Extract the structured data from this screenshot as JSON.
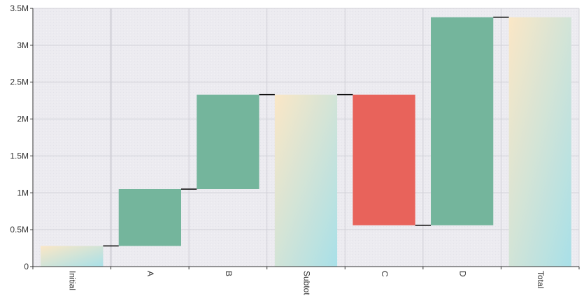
{
  "chart_data": {
    "type": "waterfall",
    "title": "",
    "xlabel": "",
    "ylabel": "",
    "categories": [
      "Initial",
      "A",
      "B",
      "Subtot",
      "C",
      "D",
      "Total"
    ],
    "bars": [
      {
        "label": "Initial",
        "kind": "total",
        "start": 0,
        "end": 280000
      },
      {
        "label": "A",
        "kind": "increase",
        "start": 280000,
        "end": 1050000
      },
      {
        "label": "B",
        "kind": "increase",
        "start": 1050000,
        "end": 2330000
      },
      {
        "label": "Subtot",
        "kind": "total",
        "start": 0,
        "end": 2330000
      },
      {
        "label": "C",
        "kind": "decrease",
        "start": 2330000,
        "end": 560000
      },
      {
        "label": "D",
        "kind": "increase",
        "start": 560000,
        "end": 3380000
      },
      {
        "label": "Total",
        "kind": "total",
        "start": 0,
        "end": 3380000
      }
    ],
    "ylim": [
      0,
      3500000
    ],
    "y_ticks": [
      {
        "value": 0,
        "label": "0"
      },
      {
        "value": 500000,
        "label": "0.5M"
      },
      {
        "value": 1000000,
        "label": "1M"
      },
      {
        "value": 1500000,
        "label": "1.5M"
      },
      {
        "value": 2000000,
        "label": "2M"
      },
      {
        "value": 2500000,
        "label": "2.5M"
      },
      {
        "value": 3000000,
        "label": "3M"
      },
      {
        "value": 3500000,
        "label": "3.5M"
      }
    ],
    "grid": true,
    "x_labels_rotation": "vertical",
    "colors": {
      "increase": "#74b59c",
      "decrease": "#e8635b",
      "total_start": "#fbe7c6",
      "total_end": "#a8e0e8",
      "plot_background": "#ecebf0",
      "gridline": "#cfcfd6",
      "connector": "#000000",
      "axis": "#333333"
    }
  }
}
